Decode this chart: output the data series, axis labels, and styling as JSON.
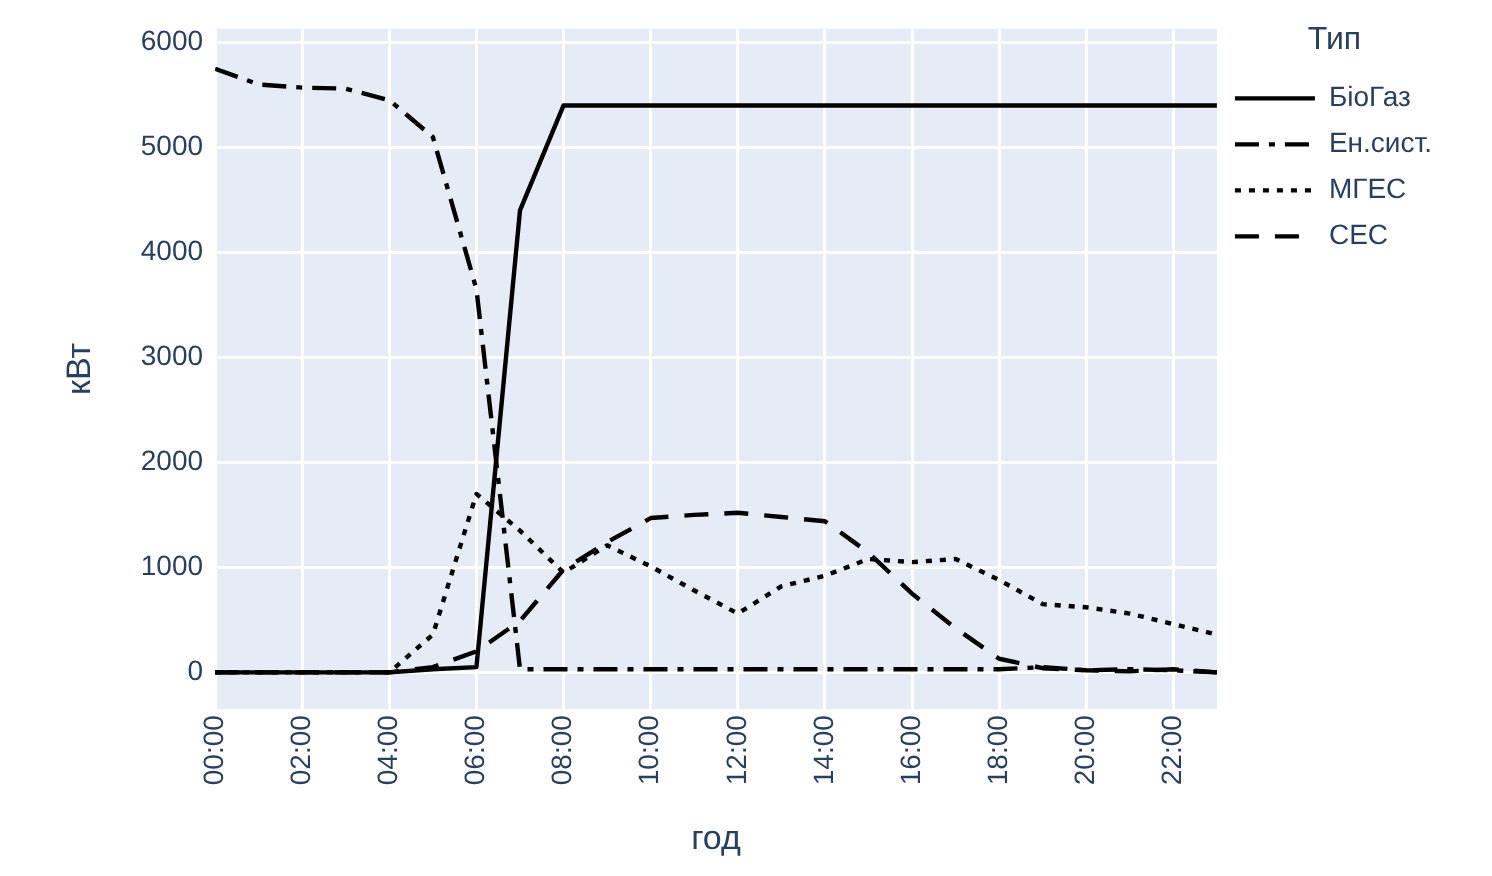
{
  "chart_data": {
    "type": "line",
    "xlabel": "год",
    "ylabel": "кВт",
    "legend_title": "Тип",
    "legend": "right",
    "grid": true,
    "marker": "none",
    "x": [
      0,
      1,
      2,
      3,
      4,
      5,
      6,
      7,
      8,
      9,
      10,
      11,
      12,
      13,
      14,
      15,
      16,
      17,
      18,
      19,
      20,
      21,
      22,
      23
    ],
    "xlim": [
      0,
      23
    ],
    "xticks": [
      {
        "value": 0,
        "label": "00:00"
      },
      {
        "value": 2,
        "label": "02:00"
      },
      {
        "value": 4,
        "label": "04:00"
      },
      {
        "value": 6,
        "label": "06:00"
      },
      {
        "value": 8,
        "label": "08:00"
      },
      {
        "value": 10,
        "label": "10:00"
      },
      {
        "value": 12,
        "label": "12:00"
      },
      {
        "value": 14,
        "label": "14:00"
      },
      {
        "value": 16,
        "label": "16:00"
      },
      {
        "value": 18,
        "label": "18:00"
      },
      {
        "value": 20,
        "label": "20:00"
      },
      {
        "value": 22,
        "label": "22:00"
      }
    ],
    "ylim": [
      -350,
      6130
    ],
    "yticks": [
      0,
      1000,
      2000,
      3000,
      4000,
      5000,
      6000
    ],
    "series": [
      {
        "name": "БіоГаз",
        "color": "#000000",
        "line_style": "solid",
        "values": [
          0,
          0,
          0,
          0,
          0,
          30,
          50,
          4400,
          5400,
          5400,
          5400,
          5400,
          5400,
          5400,
          5400,
          5400,
          5400,
          5400,
          5400,
          5400,
          5400,
          5400,
          5400,
          5400
        ]
      },
      {
        "name": "Ен.сист.",
        "color": "#000000",
        "line_style": "dashdot",
        "values": [
          5750,
          5600,
          5570,
          5560,
          5450,
          5100,
          3650,
          30,
          30,
          30,
          30,
          30,
          30,
          30,
          30,
          30,
          30,
          30,
          30,
          50,
          20,
          30,
          20,
          0
        ]
      },
      {
        "name": "МГЕС",
        "color": "#000000",
        "line_style": "dotted",
        "values": [
          0,
          0,
          0,
          0,
          0,
          360,
          1700,
          1350,
          950,
          1210,
          1010,
          780,
          560,
          820,
          920,
          1080,
          1050,
          1080,
          880,
          650,
          620,
          560,
          460,
          360
        ]
      },
      {
        "name": "СЕС",
        "color": "#000000",
        "line_style": "dashed",
        "values": [
          0,
          0,
          0,
          0,
          0,
          50,
          200,
          490,
          980,
          1240,
          1470,
          1500,
          1520,
          1480,
          1440,
          1140,
          750,
          420,
          130,
          40,
          20,
          10,
          30,
          0
        ]
      }
    ]
  }
}
